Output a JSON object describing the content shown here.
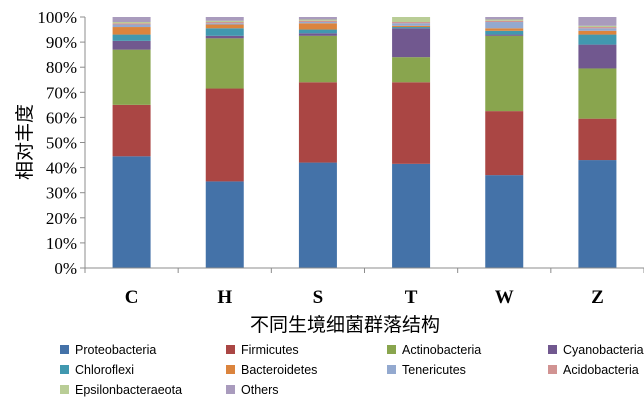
{
  "chart_data": {
    "type": "bar",
    "stacked": "percent",
    "xlabel": "不同生境细菌群落结构",
    "ylabel": "相对丰度",
    "ylim": [
      0,
      100
    ],
    "yticks": [
      "0%",
      "10%",
      "20%",
      "30%",
      "40%",
      "50%",
      "60%",
      "70%",
      "80%",
      "90%",
      "100%"
    ],
    "categories": [
      "C",
      "H",
      "S",
      "T",
      "W",
      "Z"
    ],
    "grid": false,
    "legend_position": "bottom",
    "series": [
      {
        "name": "Proteobacteria",
        "color": "#4472a8",
        "values": [
          44.5,
          34.5,
          42.0,
          41.5,
          37.0,
          43.0
        ]
      },
      {
        "name": "Firmicutes",
        "color": "#aa4644",
        "values": [
          20.5,
          37.0,
          32.0,
          32.5,
          25.5,
          16.5
        ]
      },
      {
        "name": "Actinobacteria",
        "color": "#89a54e",
        "values": [
          22.0,
          20.0,
          18.5,
          10.0,
          30.0,
          20.0
        ]
      },
      {
        "name": "Cyanobacteria",
        "color": "#71588f",
        "values": [
          3.5,
          1.0,
          1.0,
          11.5,
          0.5,
          9.5
        ]
      },
      {
        "name": "Chloroflexi",
        "color": "#4198af",
        "values": [
          2.5,
          3.0,
          1.5,
          0.5,
          1.5,
          4.0
        ]
      },
      {
        "name": "Bacteroidetes",
        "color": "#db843d",
        "values": [
          3.0,
          1.5,
          2.5,
          0.5,
          1.0,
          1.5
        ]
      },
      {
        "name": "Tenericutes",
        "color": "#93a9cf",
        "values": [
          1.0,
          0.5,
          0.5,
          1.0,
          2.5,
          1.0
        ]
      },
      {
        "name": "Acidobacteria",
        "color": "#d19392",
        "values": [
          0.5,
          0.5,
          0.5,
          0.5,
          0.5,
          0.5
        ]
      },
      {
        "name": "Epsilonbacteraeota",
        "color": "#b9cd96",
        "values": [
          0.5,
          0.5,
          0.5,
          2.0,
          0.5,
          0.5
        ]
      },
      {
        "name": "Others",
        "color": "#a99bbd",
        "values": [
          2.0,
          1.5,
          1.0,
          0.0,
          1.0,
          3.5
        ]
      }
    ]
  }
}
